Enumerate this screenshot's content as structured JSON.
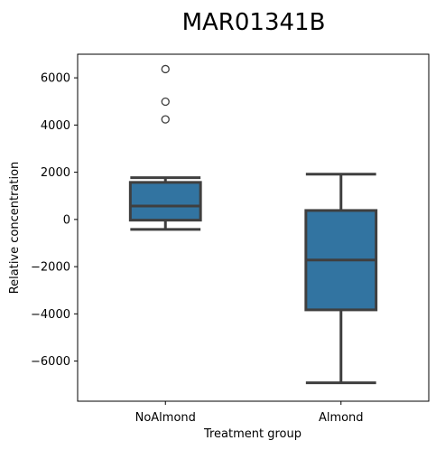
{
  "chart_data": {
    "type": "box",
    "title": "MAR01341B",
    "xlabel": "Treatment group",
    "ylabel": "Relative concentration",
    "categories": [
      "NoAlmond",
      "Almond"
    ],
    "ylim": [
      -7700,
      7000
    ],
    "yticks": [
      6000,
      4000,
      2000,
      0,
      -2000,
      -4000,
      -6000
    ],
    "ytick_labels": [
      "6000",
      "4000",
      "2000",
      "0",
      "−2000",
      "−4000",
      "−6000"
    ],
    "grid": false,
    "box_color": "#3274a1",
    "line_color": "#3f3f3f",
    "boxes": [
      {
        "category": "NoAlmond",
        "whisker_low": -420,
        "q1": -30,
        "median": 570,
        "q3": 1570,
        "whisker_high": 1770,
        "outliers": [
          6370,
          4990,
          4240
        ]
      },
      {
        "category": "Almond",
        "whisker_low": -6920,
        "q1": -3830,
        "median": -1720,
        "q3": 380,
        "whisker_high": 1920,
        "outliers": []
      }
    ]
  }
}
